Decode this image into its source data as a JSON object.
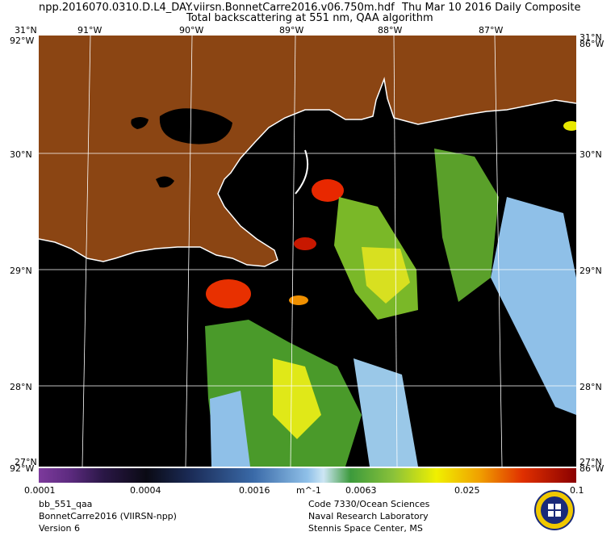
{
  "header": {
    "filename": "npp.2016070.0310.D.L4_DAY.viirsn.BonnetCarre2016.v06.750m.hdf",
    "date": "Thu Mar 10 2016 Daily Composite",
    "product": "Total backscattering at 551 nm, QAA algorithm"
  },
  "axes": {
    "lon_labels": [
      "91°W",
      "90°W",
      "89°W",
      "88°W",
      "87°W"
    ],
    "lat_labels": [
      "30°N",
      "29°N",
      "28°N"
    ],
    "corner_top_left_lat": "31°N",
    "corner_top_right_lat": "31°N",
    "corner_top_left_lon": "92°W",
    "corner_top_right_lon": "86°W",
    "corner_bottom_left_lat": "27°N",
    "corner_bottom_right_lat": "27°N",
    "corner_bottom_left_lon": "92°W",
    "corner_bottom_right_lon": "86°W"
  },
  "colorbar": {
    "ticks": [
      "0.0001",
      "0.0004",
      "0.0016",
      "0.0063",
      "0.025",
      "0.1"
    ],
    "unit": "m^-1"
  },
  "footer": {
    "left": [
      "bb_551_qaa",
      "BonnetCarre2016 (VIIRSN-npp)",
      "Version 6"
    ],
    "right": [
      "Code 7330/Ocean Sciences",
      "Naval Research Laboratory",
      "Stennis Space Center, MS"
    ]
  },
  "colors": {
    "land": "#8b4513",
    "background": "#000000",
    "grid": "#ffffff"
  }
}
